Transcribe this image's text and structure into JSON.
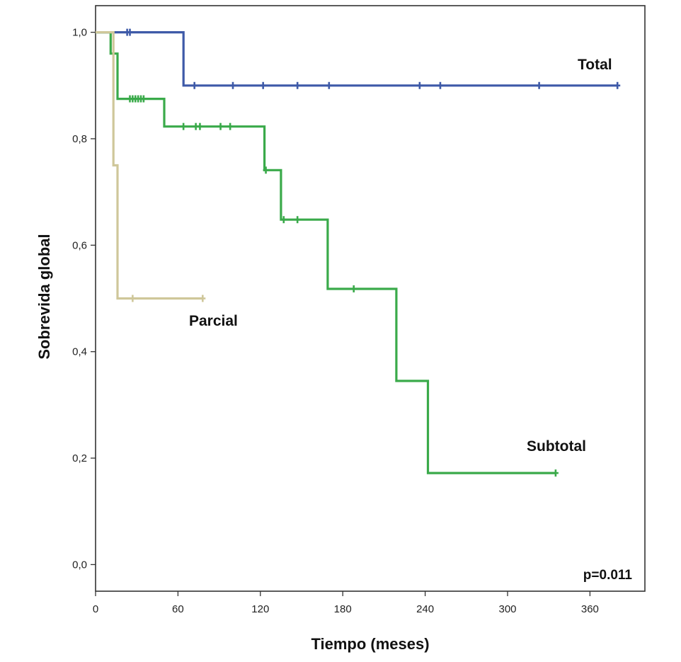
{
  "chart_data": {
    "type": "line",
    "xlabel": "Tiempo (meses)",
    "ylabel": "Sobrevida global",
    "xlim": [
      0,
      400
    ],
    "ylim": [
      -0.05,
      1.05
    ],
    "x_ticks": [
      0,
      60,
      120,
      180,
      240,
      300,
      360
    ],
    "x_tick_labels": [
      "0",
      "60",
      "120",
      "180",
      "240",
      "300",
      "360"
    ],
    "y_ticks": [
      0.0,
      0.2,
      0.4,
      0.6,
      0.8,
      1.0
    ],
    "y_tick_labels": [
      "0,0",
      "0,2",
      "0,4",
      "0,6",
      "0,8",
      "1,0"
    ],
    "grid": false,
    "annotation": "p=0.011",
    "series": [
      {
        "name": "Total",
        "color": "#3e5aa8",
        "steps": [
          [
            0,
            1.0
          ],
          [
            64,
            1.0
          ],
          [
            64,
            0.9
          ],
          [
            380,
            0.9
          ]
        ],
        "censored": [
          [
            23,
            1.0
          ],
          [
            25,
            1.0
          ],
          [
            72,
            0.9
          ],
          [
            100,
            0.9
          ],
          [
            122,
            0.9
          ],
          [
            147,
            0.9
          ],
          [
            170,
            0.9
          ],
          [
            236,
            0.9
          ],
          [
            251,
            0.9
          ],
          [
            323,
            0.9
          ],
          [
            380,
            0.9
          ]
        ]
      },
      {
        "name": "Subtotal",
        "color": "#3aaa4a",
        "steps": [
          [
            0,
            1.0
          ],
          [
            11,
            1.0
          ],
          [
            11,
            0.96
          ],
          [
            16,
            0.96
          ],
          [
            16,
            0.875
          ],
          [
            50,
            0.875
          ],
          [
            50,
            0.823
          ],
          [
            123,
            0.823
          ],
          [
            123,
            0.741
          ],
          [
            135,
            0.741
          ],
          [
            135,
            0.648
          ],
          [
            169,
            0.648
          ],
          [
            169,
            0.518
          ],
          [
            219,
            0.518
          ],
          [
            219,
            0.345
          ],
          [
            242,
            0.345
          ],
          [
            242,
            0.172
          ],
          [
            335,
            0.172
          ]
        ],
        "censored": [
          [
            25,
            0.875
          ],
          [
            27,
            0.875
          ],
          [
            29,
            0.875
          ],
          [
            31,
            0.875
          ],
          [
            33,
            0.875
          ],
          [
            35,
            0.875
          ],
          [
            64,
            0.823
          ],
          [
            73,
            0.823
          ],
          [
            76,
            0.823
          ],
          [
            91,
            0.823
          ],
          [
            98,
            0.823
          ],
          [
            124,
            0.741
          ],
          [
            137,
            0.648
          ],
          [
            147,
            0.648
          ],
          [
            188,
            0.518
          ],
          [
            335,
            0.172
          ]
        ]
      },
      {
        "name": "Parcial",
        "color": "#cfc79a",
        "steps": [
          [
            0,
            1.0
          ],
          [
            13,
            1.0
          ],
          [
            13,
            0.75
          ],
          [
            16,
            0.75
          ],
          [
            16,
            0.5
          ],
          [
            78,
            0.5
          ]
        ],
        "censored": [
          [
            27,
            0.5
          ],
          [
            78,
            0.5
          ]
        ]
      }
    ]
  }
}
